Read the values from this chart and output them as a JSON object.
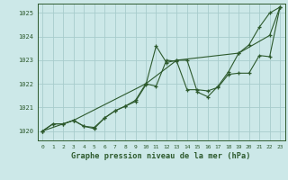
{
  "bg_color": "#cce8e8",
  "line_color": "#2d5a2d",
  "grid_color": "#a8cccc",
  "title": "Graphe pression niveau de la mer (hPa)",
  "ylim": [
    1019.6,
    1025.4
  ],
  "xlim": [
    -0.5,
    23.5
  ],
  "yticks": [
    1020,
    1021,
    1022,
    1023,
    1024,
    1025
  ],
  "xticks": [
    0,
    1,
    2,
    3,
    4,
    5,
    6,
    7,
    8,
    9,
    10,
    11,
    12,
    13,
    14,
    15,
    16,
    17,
    18,
    19,
    20,
    21,
    22,
    23
  ],
  "line1_x": [
    0,
    1,
    2,
    3,
    4,
    5,
    6,
    7,
    8,
    9,
    10,
    11,
    12,
    13,
    14,
    15,
    16,
    17,
    18,
    19,
    20,
    21,
    22,
    23
  ],
  "line1_y": [
    1020.0,
    1020.3,
    1020.3,
    1020.45,
    1020.2,
    1020.1,
    1020.55,
    1020.85,
    1021.05,
    1021.25,
    1021.95,
    1023.6,
    1022.9,
    1023.0,
    1023.0,
    1021.65,
    1021.45,
    1021.9,
    1022.5,
    1023.3,
    1023.65,
    1024.4,
    1025.0,
    1025.25
  ],
  "line2_x": [
    0,
    1,
    2,
    3,
    4,
    5,
    6,
    7,
    8,
    9,
    10,
    11,
    12,
    13,
    14,
    15,
    16,
    17,
    18,
    19,
    20,
    21,
    22,
    23
  ],
  "line2_y": [
    1020.0,
    1020.3,
    1020.3,
    1020.45,
    1020.2,
    1020.15,
    1020.55,
    1020.85,
    1021.05,
    1021.3,
    1022.0,
    1021.9,
    1023.0,
    1022.95,
    1021.75,
    1021.75,
    1021.7,
    1021.85,
    1022.4,
    1022.45,
    1022.45,
    1023.2,
    1023.15,
    1025.25
  ],
  "line3_x": [
    0,
    3,
    10,
    13,
    19,
    22,
    23
  ],
  "line3_y": [
    1020.0,
    1020.45,
    1022.0,
    1023.0,
    1023.3,
    1024.05,
    1025.25
  ]
}
